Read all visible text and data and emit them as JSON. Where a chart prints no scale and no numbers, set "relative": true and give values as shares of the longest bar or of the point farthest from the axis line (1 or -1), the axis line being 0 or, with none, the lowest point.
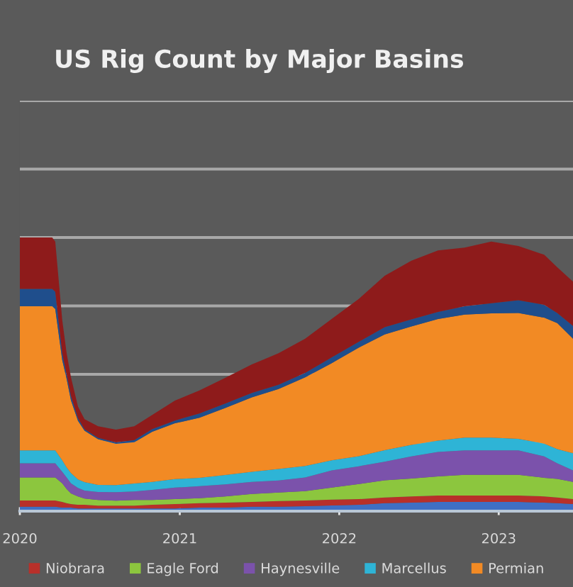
{
  "chart_data": {
    "type": "area",
    "title": "US Rig Count by Major Basins",
    "stacked": true,
    "relative": true,
    "grid": "y",
    "legend": "bottom",
    "tick_labels": "x",
    "x": [
      "2020-01-01",
      "2020-03-15",
      "2020-03-22",
      "2020-04-07",
      "2020-04-17",
      "2020-04-27",
      "2020-05-13",
      "2020-05-28",
      "2020-06-28",
      "2020-08-08",
      "2020-09-19",
      "2020-10-30",
      "2020-12-21",
      "2021-02-15",
      "2021-04-15",
      "2021-06-15",
      "2021-08-15",
      "2021-10-15",
      "2021-12-15",
      "2022-02-15",
      "2022-04-15",
      "2022-06-15",
      "2022-08-15",
      "2022-10-15",
      "2022-12-15",
      "2023-02-15",
      "2023-04-15",
      "2023-05-15",
      "2023-06-20"
    ],
    "xlim": [
      "2020-01-01",
      "2023-06-20"
    ],
    "xticks": [
      "2020",
      "2021",
      "2022",
      "2023"
    ],
    "series": [
      {
        "color": "#3f6fc4",
        "values": [
          0.016,
          0.016,
          0.016,
          0.013,
          0.013,
          0.013,
          0.01,
          0.01,
          0.01,
          0.01,
          0.01,
          0.01,
          0.01,
          0.013,
          0.013,
          0.016,
          0.016,
          0.018,
          0.021,
          0.023,
          0.029,
          0.031,
          0.034,
          0.034,
          0.034,
          0.034,
          0.031,
          0.029,
          0.026
        ]
      },
      {
        "name": "Niobrara",
        "color": "#b8302a",
        "values": [
          0.023,
          0.023,
          0.023,
          0.021,
          0.016,
          0.013,
          0.013,
          0.013,
          0.01,
          0.01,
          0.01,
          0.013,
          0.016,
          0.016,
          0.018,
          0.018,
          0.021,
          0.021,
          0.021,
          0.021,
          0.021,
          0.023,
          0.023,
          0.023,
          0.023,
          0.023,
          0.023,
          0.021,
          0.018
        ]
      },
      {
        "name": "Eagle Ford",
        "color": "#8cc63e",
        "values": [
          0.084,
          0.084,
          0.084,
          0.068,
          0.052,
          0.039,
          0.031,
          0.023,
          0.021,
          0.018,
          0.021,
          0.018,
          0.018,
          0.018,
          0.023,
          0.029,
          0.031,
          0.034,
          0.044,
          0.055,
          0.063,
          0.065,
          0.07,
          0.076,
          0.076,
          0.076,
          0.068,
          0.068,
          0.063
        ]
      },
      {
        "name": "Haynesville",
        "color": "#7b52ab",
        "values": [
          0.052,
          0.052,
          0.052,
          0.042,
          0.042,
          0.037,
          0.031,
          0.029,
          0.029,
          0.031,
          0.031,
          0.037,
          0.042,
          0.044,
          0.044,
          0.044,
          0.044,
          0.05,
          0.063,
          0.065,
          0.068,
          0.081,
          0.089,
          0.089,
          0.089,
          0.089,
          0.078,
          0.057,
          0.042
        ]
      },
      {
        "name": "Marcellus",
        "color": "#2eb4d6",
        "values": [
          0.047,
          0.047,
          0.047,
          0.042,
          0.037,
          0.037,
          0.031,
          0.031,
          0.026,
          0.026,
          0.029,
          0.029,
          0.031,
          0.031,
          0.034,
          0.037,
          0.042,
          0.042,
          0.037,
          0.037,
          0.042,
          0.042,
          0.042,
          0.047,
          0.047,
          0.042,
          0.047,
          0.052,
          0.063
        ]
      },
      {
        "name": "Permian",
        "color": "#f28a24",
        "values": [
          0.527,
          0.527,
          0.517,
          0.366,
          0.324,
          0.266,
          0.214,
          0.188,
          0.167,
          0.151,
          0.151,
          0.183,
          0.204,
          0.219,
          0.245,
          0.272,
          0.292,
          0.324,
          0.355,
          0.397,
          0.423,
          0.433,
          0.444,
          0.449,
          0.454,
          0.46,
          0.46,
          0.46,
          0.418
        ]
      },
      {
        "color": "#1f4e8c",
        "values": [
          0.063,
          0.063,
          0.063,
          0.026,
          0.016,
          0.016,
          0.01,
          0.005,
          0.005,
          0.005,
          0.008,
          0.01,
          0.01,
          0.016,
          0.016,
          0.016,
          0.016,
          0.016,
          0.021,
          0.021,
          0.026,
          0.026,
          0.026,
          0.031,
          0.037,
          0.047,
          0.047,
          0.037,
          0.047
        ]
      },
      {
        "color": "#8e1b1b",
        "values": [
          0.188,
          0.188,
          0.183,
          0.12,
          0.078,
          0.068,
          0.042,
          0.037,
          0.042,
          0.047,
          0.05,
          0.052,
          0.073,
          0.084,
          0.094,
          0.104,
          0.115,
          0.125,
          0.141,
          0.157,
          0.188,
          0.214,
          0.225,
          0.214,
          0.225,
          0.198,
          0.183,
          0.167,
          0.162
        ]
      }
    ]
  }
}
